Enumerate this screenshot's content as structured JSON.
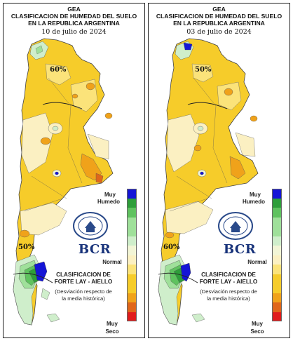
{
  "maps": [
    {
      "title_line1": "GEA",
      "title_line2": "CLASIFICACION DE HUMEDAD DEL SUELO",
      "title_line3": "EN LA REPUBLICA ARGENTINA",
      "date": "10 de julio de 2024",
      "contour_top": "60%",
      "contour_bottom": "50%"
    },
    {
      "title_line1": "GEA",
      "title_line2": "CLASIFICACION DE HUMEDAD DEL SUELO",
      "title_line3": "EN LA REPUBLICA ARGENTINA",
      "date": "03 de julio de 2024",
      "contour_top": "50%",
      "contour_bottom": "60%"
    }
  ],
  "legend": {
    "muy_humedo_1": "Muy",
    "muy_humedo_2": "Humedo",
    "normal": "Normal",
    "muy_seco_1": "Muy",
    "muy_seco_2": "Seco",
    "colors": [
      "#1515d6",
      "#2e9e3a",
      "#5fc25f",
      "#9fe09a",
      "#cfeecb",
      "#f2f5d6",
      "#fbf0c2",
      "#fbe37a",
      "#f6cc2a",
      "#f0a21a",
      "#e0661a",
      "#e01c1c"
    ]
  },
  "branding": {
    "logo_text": "BCR",
    "seal_text": "BOLSA DE COMERCIO DE ROSARIO",
    "clasif_line1": "CLASIFICACION DE",
    "clasif_line2": "FORTE LAY - AIELLO",
    "dev_line1": "(Desviación respecto de",
    "dev_line2": "la media histórica)"
  }
}
